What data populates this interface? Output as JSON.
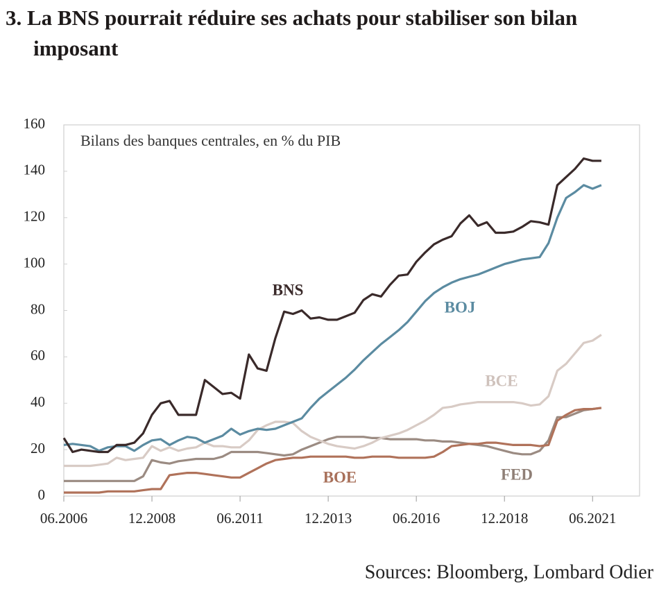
{
  "chart_data": {
    "type": "line",
    "title": "3. La BNS pourrait réduire ses achats pour stabiliser son bilan imposant",
    "subtitle": "Bilans des banques centrales, en % du PIB",
    "source": "Sources: Bloomberg, Lombard Odier",
    "x": [
      "2006-06",
      "2006-09",
      "2006-12",
      "2007-03",
      "2007-06",
      "2007-09",
      "2007-12",
      "2008-03",
      "2008-06",
      "2008-09",
      "2008-12",
      "2009-03",
      "2009-06",
      "2009-09",
      "2009-12",
      "2010-03",
      "2010-06",
      "2010-09",
      "2010-12",
      "2011-03",
      "2011-06",
      "2011-09",
      "2011-12",
      "2012-03",
      "2012-06",
      "2012-09",
      "2012-12",
      "2013-03",
      "2013-06",
      "2013-09",
      "2013-12",
      "2014-03",
      "2014-06",
      "2014-09",
      "2014-12",
      "2015-03",
      "2015-06",
      "2015-09",
      "2015-12",
      "2016-03",
      "2016-06",
      "2016-09",
      "2016-12",
      "2017-03",
      "2017-06",
      "2017-09",
      "2017-12",
      "2018-03",
      "2018-06",
      "2018-09",
      "2018-12",
      "2019-03",
      "2019-06",
      "2019-09",
      "2019-12",
      "2020-03",
      "2020-06",
      "2020-09",
      "2020-12",
      "2021-03",
      "2021-06",
      "2021-09"
    ],
    "xlim": [
      "2006-06",
      "2022-10"
    ],
    "xticks": [
      {
        "value": "2006-06",
        "label": "06.2006"
      },
      {
        "value": "2008-12",
        "label": "12.2008"
      },
      {
        "value": "2011-06",
        "label": "06.2011"
      },
      {
        "value": "2013-12",
        "label": "12.2013"
      },
      {
        "value": "2016-06",
        "label": "06.2016"
      },
      {
        "value": "2018-12",
        "label": "12.2018"
      },
      {
        "value": "2021-06",
        "label": "06.2021"
      }
    ],
    "ylim": [
      0,
      160
    ],
    "yticks": [
      0,
      20,
      40,
      60,
      80,
      100,
      120,
      140,
      160
    ],
    "grid": false,
    "series": [
      {
        "name": "BNS",
        "color": "#3a2a2a",
        "values": [
          25,
          19,
          20,
          19.5,
          19,
          19,
          22,
          22,
          23,
          27,
          35,
          40,
          41,
          35,
          35,
          35,
          50,
          47,
          44,
          44.5,
          42,
          61,
          55,
          54,
          68,
          79.5,
          78.5,
          80,
          76.5,
          77,
          76,
          76,
          77.5,
          79,
          84.5,
          87,
          86,
          91,
          95,
          95.5,
          101,
          105,
          108.5,
          110.5,
          112,
          117.5,
          121,
          116.5,
          118,
          113.5,
          113.5,
          114,
          116,
          118.5,
          118,
          117,
          134,
          137.5,
          141,
          145.5,
          144.5,
          144.5
        ]
      },
      {
        "name": "BOJ",
        "color": "#5b8ba1",
        "values": [
          22,
          22.5,
          22,
          21.5,
          19.5,
          21,
          21.5,
          21.5,
          19.5,
          22,
          24,
          24.5,
          22,
          24,
          25.5,
          25,
          23,
          24.5,
          26,
          29,
          26.5,
          28,
          29,
          28.5,
          29,
          30.5,
          32,
          33.5,
          38,
          42,
          45,
          48,
          51,
          54.5,
          58.5,
          62,
          65.5,
          68.5,
          71.5,
          75,
          79.5,
          84,
          87.5,
          90,
          92,
          93.5,
          94.5,
          95.5,
          97,
          98.5,
          100,
          101,
          102,
          102.5,
          103,
          109,
          120,
          128.5,
          131,
          134,
          132.5,
          134
        ]
      },
      {
        "name": "BCE",
        "color": "#d8cbc5",
        "values": [
          13,
          13,
          13,
          13,
          13.5,
          14,
          16.5,
          15.5,
          16,
          16.5,
          21.5,
          19.5,
          21,
          19.5,
          20.5,
          21,
          23,
          21.5,
          21.5,
          21,
          21,
          24,
          28.5,
          30.5,
          32,
          32,
          31.5,
          28,
          25.5,
          24,
          22.5,
          21.5,
          21,
          20.5,
          21.5,
          23,
          25,
          26,
          27,
          28.5,
          30.5,
          32.5,
          35,
          38,
          38.5,
          39.5,
          40,
          40.5,
          40.5,
          40.5,
          40.5,
          40.5,
          40,
          39,
          39.5,
          43,
          54,
          57,
          61.5,
          66,
          67,
          69.5
        ]
      },
      {
        "name": "FED",
        "color": "#9b8b82",
        "values": [
          6.5,
          6.5,
          6.5,
          6.5,
          6.5,
          6.5,
          6.5,
          6.5,
          6.5,
          8.5,
          15.5,
          14.5,
          14,
          15,
          15.5,
          16,
          16,
          16,
          17,
          19,
          19,
          19,
          19,
          18.5,
          18,
          17.5,
          18,
          20,
          21.5,
          23,
          24.5,
          25.5,
          25.5,
          25.5,
          25.5,
          25,
          25,
          24.5,
          24.5,
          24.5,
          24.5,
          24,
          24,
          23.5,
          23.5,
          23,
          22.5,
          22,
          21.5,
          20.5,
          19.5,
          18.5,
          18,
          18,
          19.5,
          24,
          34,
          34,
          35.5,
          37,
          37.5,
          38
        ]
      },
      {
        "name": "BOE",
        "color": "#b0725a",
        "values": [
          1.5,
          1.5,
          1.5,
          1.5,
          1.5,
          2,
          2,
          2,
          2,
          2.5,
          3,
          3,
          9,
          9.5,
          10,
          10,
          9.5,
          9,
          8.5,
          8,
          8,
          10,
          12,
          14,
          15.5,
          16,
          16.5,
          16.5,
          17,
          17,
          17,
          17,
          17,
          16.5,
          16.5,
          17,
          17,
          17,
          16.5,
          16.5,
          16.5,
          16.5,
          17,
          19,
          21.5,
          22,
          22.5,
          22.5,
          23,
          23,
          22.5,
          22,
          22,
          22,
          21.5,
          22,
          32.5,
          35,
          37,
          37.5,
          37.5,
          38
        ]
      }
    ]
  }
}
